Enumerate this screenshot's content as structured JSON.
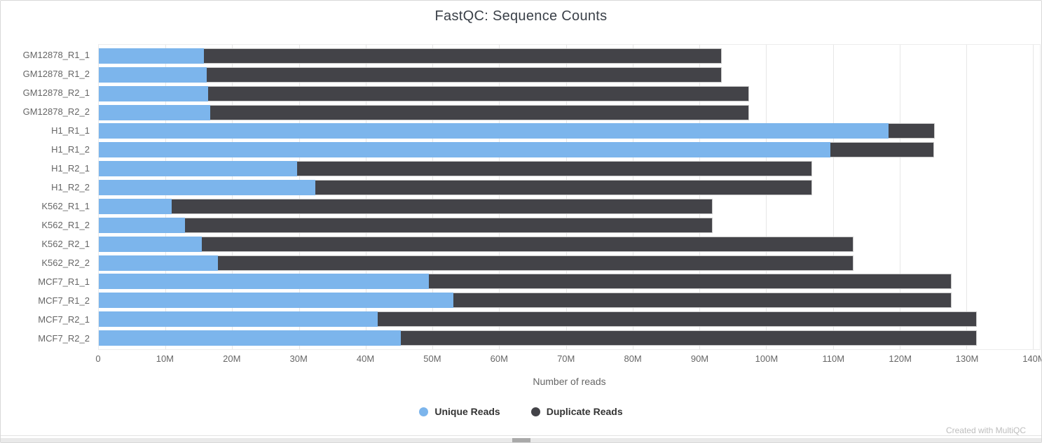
{
  "page": {
    "footer": "Created with MultiQC"
  },
  "chart_data": {
    "type": "bar",
    "orientation": "horizontal",
    "stacked": true,
    "title": "FastQC: Sequence Counts",
    "xlabel": "Number of reads",
    "ylabel": "",
    "grid": true,
    "legend_position": "bottom",
    "values_unit": "millions of reads",
    "xlim": [
      0,
      140
    ],
    "xlim_render": 141,
    "x_ticks": [
      "0",
      "10M",
      "20M",
      "30M",
      "40M",
      "50M",
      "60M",
      "70M",
      "80M",
      "90M",
      "100M",
      "110M",
      "120M",
      "130M",
      "140M"
    ],
    "x_tick_values": [
      0,
      10,
      20,
      30,
      40,
      50,
      60,
      70,
      80,
      90,
      100,
      110,
      120,
      130,
      140
    ],
    "categories": [
      "GM12878_R1_1",
      "GM12878_R1_2",
      "GM12878_R2_1",
      "GM12878_R2_2",
      "H1_R1_1",
      "H1_R1_2",
      "H1_R2_1",
      "H1_R2_2",
      "K562_R1_1",
      "K562_R1_2",
      "K562_R2_1",
      "K562_R2_2",
      "MCF7_R1_1",
      "MCF7_R1_2",
      "MCF7_R2_1",
      "MCF7_R2_2"
    ],
    "series": [
      {
        "name": "Unique Reads",
        "color": "#7cb5ec",
        "values": [
          15.8,
          16.2,
          16.4,
          16.7,
          118.3,
          109.6,
          29.7,
          32.4,
          10.9,
          12.9,
          15.4,
          17.8,
          49.5,
          53.1,
          41.8,
          45.2
        ]
      },
      {
        "name": "Duplicate Reads",
        "color": "#434348",
        "values": [
          77.5,
          77.1,
          81.0,
          80.7,
          6.9,
          15.6,
          77.2,
          74.5,
          81.1,
          79.1,
          97.7,
          95.3,
          78.3,
          74.7,
          89.7,
          86.3
        ]
      }
    ],
    "totals": [
      93.3,
      93.3,
      97.4,
      97.4,
      125.2,
      125.2,
      106.9,
      106.9,
      92.0,
      92.0,
      113.1,
      113.1,
      127.8,
      127.8,
      131.5,
      131.5
    ]
  },
  "colors": {
    "unique": "#7cb5ec",
    "duplicate": "#434348",
    "gridline": "#e6e6e6",
    "axis_text": "#666666",
    "title_text": "#3b4149",
    "footer_text": "#bdbdbd"
  }
}
